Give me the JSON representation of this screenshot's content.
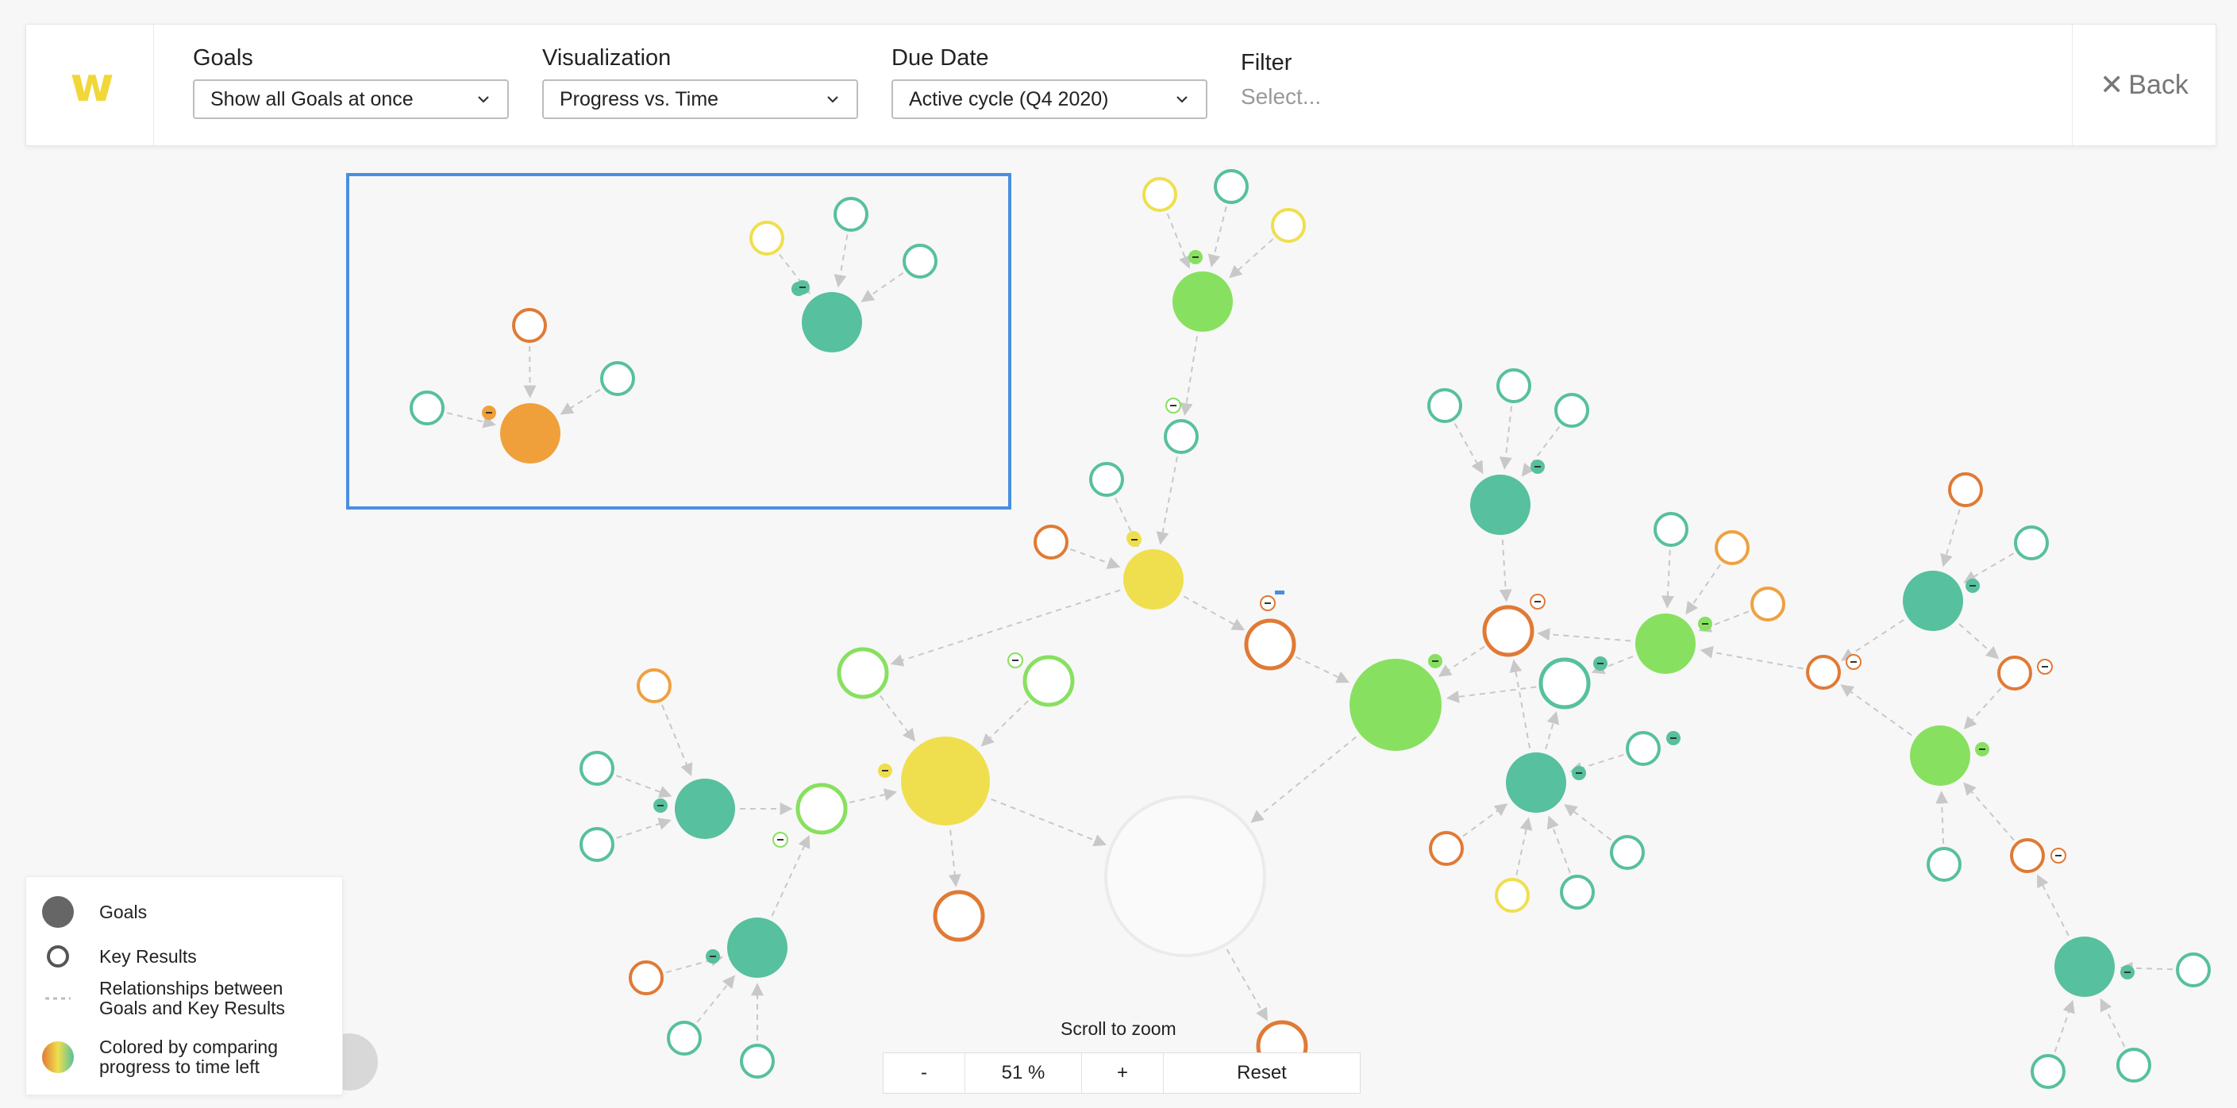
{
  "app": {
    "logo_text": "w"
  },
  "header": {
    "goals": {
      "label": "Goals",
      "value": "Show all Goals at once"
    },
    "visualization": {
      "label": "Visualization",
      "value": "Progress vs. Time"
    },
    "due_date": {
      "label": "Due Date",
      "value": "Active cycle (Q4 2020)"
    },
    "filter": {
      "label": "Filter",
      "placeholder": "Select..."
    },
    "back": {
      "icon": "close-icon",
      "label": "Back"
    }
  },
  "legend": {
    "goals": "Goals",
    "key_results": "Key Results",
    "relationships": [
      "Relationships between",
      "Goals and Key Results"
    ],
    "colored": [
      "Colored by comparing",
      "progress to time left"
    ]
  },
  "zoom": {
    "caption": "Scroll to zoom",
    "minus": "-",
    "level": "51 %",
    "plus": "+",
    "reset": "Reset"
  },
  "colors": {
    "teal": "#57c09e",
    "green": "#88e060",
    "yellow": "#efdf4e",
    "orange_goal": "#f0a03a",
    "orange_kr": "#e07a35",
    "light_orange_kr": "#f0a040",
    "selection": "#4a8ee0",
    "edge": "#c8c8c8"
  }
}
